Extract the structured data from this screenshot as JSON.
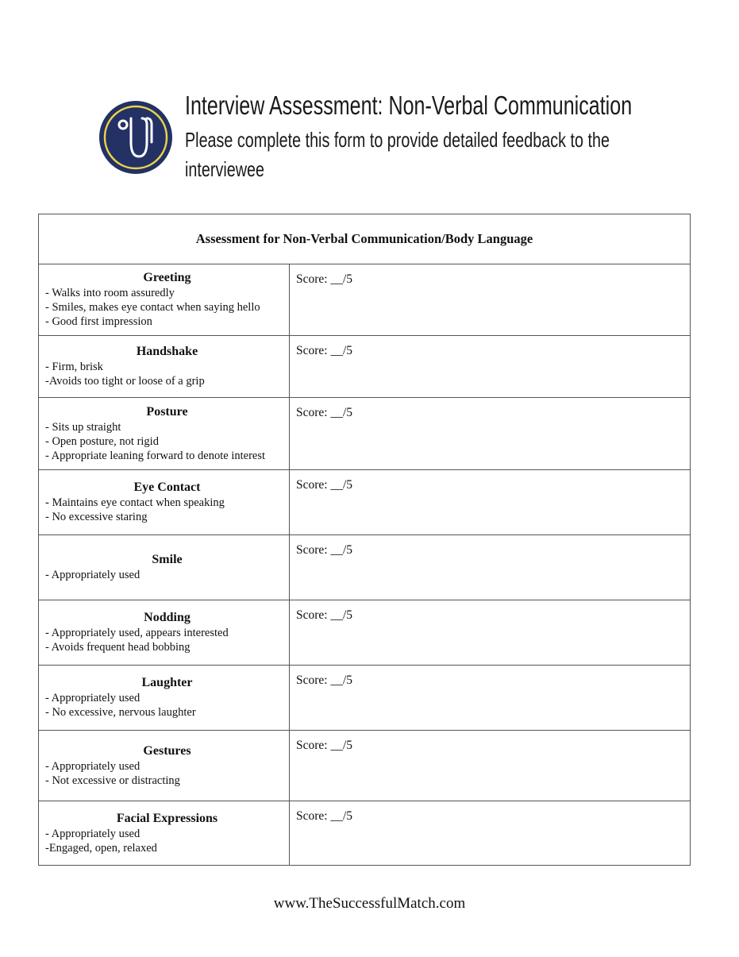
{
  "header": {
    "title": "Interview Assessment: Non-Verbal Communication",
    "subtitle_line1": "Please complete this form to provide detailed feedback to the",
    "subtitle_line2": "interviewee",
    "logo_icon": "stethoscope-icon",
    "colors": {
      "logo_bg": "#243165",
      "logo_ring": "#e8d34a"
    }
  },
  "table": {
    "heading": "Assessment for Non-Verbal Communication/Body Language",
    "rows": [
      {
        "title": "Greeting",
        "items": [
          "- Walks into room assuredly",
          "- Smiles, makes eye contact when saying hello",
          "- Good first impression"
        ],
        "score": "Score: __/5"
      },
      {
        "title": "Handshake",
        "items": [
          "- Firm, brisk",
          "-Avoids too tight or loose of a grip"
        ],
        "score": "Score: __/5"
      },
      {
        "title": "Posture",
        "items": [
          "- Sits up straight",
          "- Open posture, not rigid",
          "- Appropriate leaning forward to denote interest"
        ],
        "score": "Score: __/5"
      },
      {
        "title": "Eye Contact",
        "items": [
          "- Maintains eye contact when speaking",
          "- No excessive staring"
        ],
        "score": "Score: __/5"
      },
      {
        "title": "Smile",
        "items": [
          "- Appropriately used"
        ],
        "score": "Score: __/5"
      },
      {
        "title": "Nodding",
        "items": [
          "- Appropriately used, appears interested",
          "- Avoids frequent head bobbing"
        ],
        "score": "Score: __/5"
      },
      {
        "title": "Laughter",
        "items": [
          "- Appropriately used",
          "- No excessive, nervous laughter"
        ],
        "score": "Score: __/5"
      },
      {
        "title": "Gestures",
        "items": [
          "- Appropriately used",
          "- Not excessive or distracting"
        ],
        "score": "Score: __/5"
      },
      {
        "title": "Facial Expressions",
        "items": [
          "- Appropriately used",
          "-Engaged, open, relaxed"
        ],
        "score": "Score: __/5"
      }
    ]
  },
  "footer": {
    "url": "www.TheSuccessfulMatch.com"
  }
}
